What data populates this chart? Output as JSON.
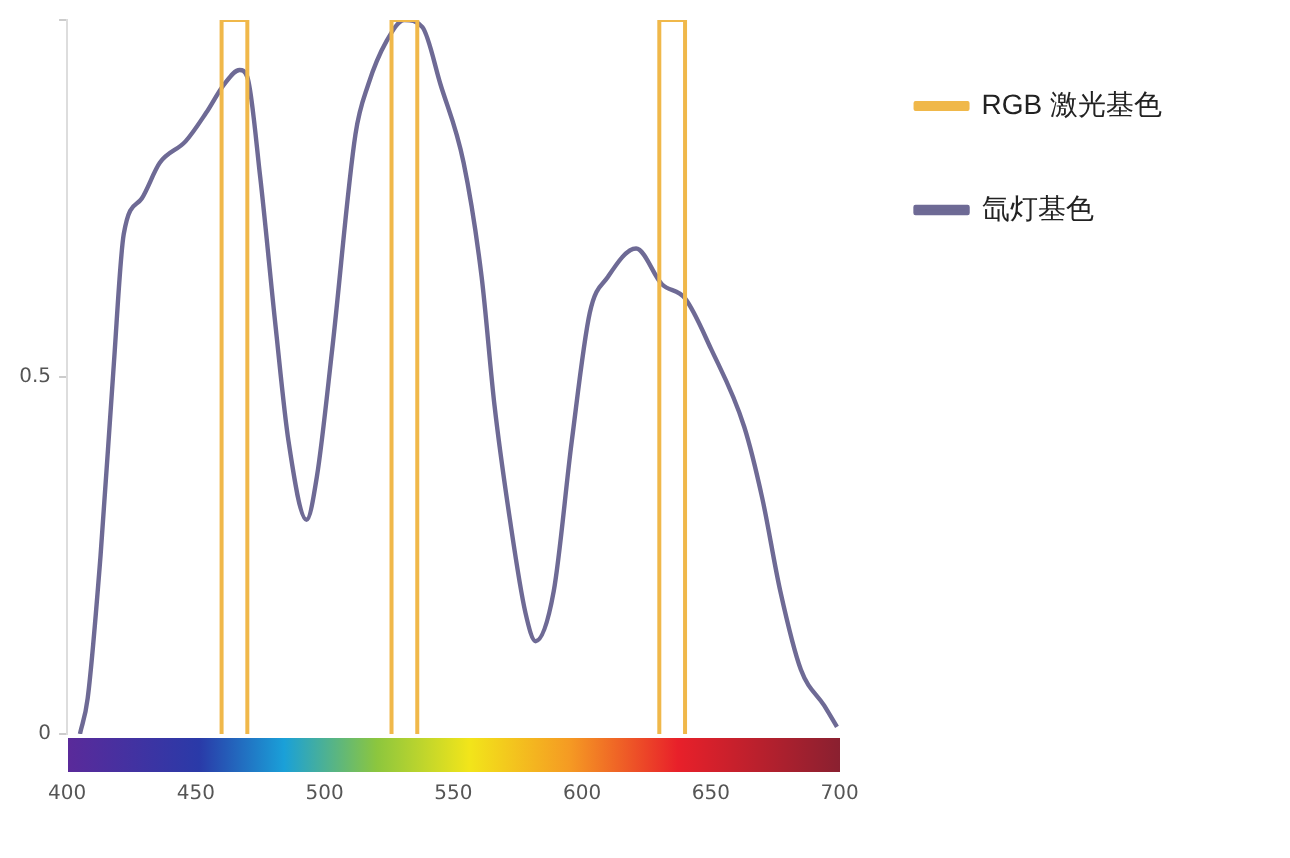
{
  "chart_data": {
    "type": "line",
    "x": [
      405,
      408,
      413,
      418,
      422,
      429,
      436,
      446,
      454,
      461,
      467,
      470,
      475,
      481,
      486,
      493,
      497,
      503,
      512,
      517,
      524,
      531,
      538,
      545,
      554,
      561,
      566,
      572,
      578,
      582,
      589,
      596,
      603,
      610,
      621,
      631,
      640,
      650,
      663,
      670,
      677,
      685,
      694,
      699
    ],
    "series": [
      {
        "name": "RGB 激光基色",
        "color": "#f0b84a",
        "x": [
          460,
          460,
          470,
          470,
          526,
          526,
          536,
          536,
          630,
          630,
          640,
          640
        ],
        "values": [
          0,
          1,
          1,
          0,
          0,
          1,
          1,
          0,
          0,
          1,
          1,
          0
        ]
      },
      {
        "name": "氙灯基色",
        "color": "#6e6a95",
        "values": [
          0,
          0.05,
          0.25,
          0.51,
          0.7,
          0.75,
          0.8,
          0.83,
          0.87,
          0.91,
          0.93,
          0.92,
          0.78,
          0.57,
          0.41,
          0.3,
          0.36,
          0.54,
          0.84,
          0.91,
          0.97,
          1.0,
          0.99,
          0.91,
          0.8,
          0.64,
          0.46,
          0.3,
          0.17,
          0.13,
          0.2,
          0.41,
          0.59,
          0.64,
          0.68,
          0.63,
          0.61,
          0.54,
          0.43,
          0.33,
          0.2,
          0.09,
          0.04,
          0.01
        ]
      }
    ],
    "xlim": [
      400,
      700
    ],
    "xticks": [
      400,
      450,
      500,
      550,
      600,
      650,
      700
    ],
    "ylim": [
      0,
      1
    ],
    "yticks": [
      0,
      0.5,
      {
        "value": 1,
        "label": null
      }
    ],
    "legend": "top right",
    "marker": "none",
    "line_style": "solid"
  }
}
